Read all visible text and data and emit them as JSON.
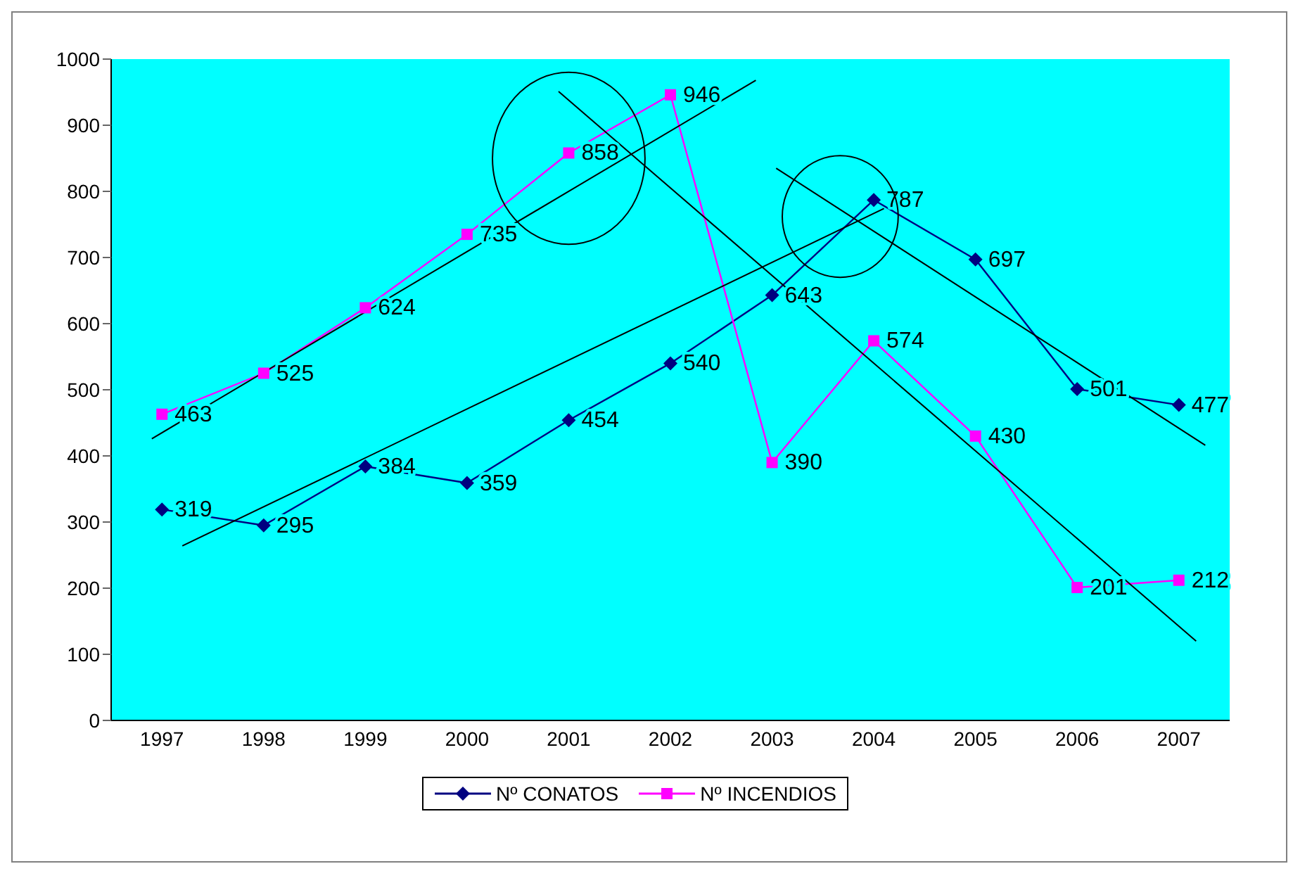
{
  "chart_data": {
    "type": "line",
    "x": [
      1997,
      1998,
      1999,
      2000,
      2001,
      2002,
      2003,
      2004,
      2005,
      2006,
      2007
    ],
    "series": [
      {
        "name": "Nº CONATOS",
        "color": "#000080",
        "marker": "diamond",
        "values": [
          319,
          295,
          384,
          359,
          454,
          540,
          643,
          787,
          697,
          501,
          477
        ],
        "value_labels": [
          "319",
          "295",
          "384",
          "359",
          "454",
          "540",
          "643",
          "787",
          "697",
          "501",
          "477"
        ]
      },
      {
        "name": "Nº INCENDIOS",
        "color": "#ff00ff",
        "marker": "square",
        "values": [
          463,
          525,
          624,
          735,
          858,
          946,
          390,
          574,
          430,
          201,
          212
        ],
        "value_labels": [
          "463",
          "525",
          "624",
          "735",
          "858",
          "946",
          "390",
          "574",
          "430",
          "201",
          "212"
        ]
      },
      {
        "type": "line",
        "color": "#000000",
        "marker": "none",
        "x": [
          1996.9,
          2002.84
        ],
        "values": [
          426,
          968
        ]
      },
      {
        "type": "line",
        "color": "#000000",
        "marker": "none",
        "x": [
          1997.2,
          2004.1
        ],
        "values": [
          264,
          774
        ]
      },
      {
        "type": "line",
        "color": "#000000",
        "marker": "none",
        "x": [
          2000.9,
          2007.17
        ],
        "values": [
          951,
          120
        ]
      },
      {
        "type": "line",
        "color": "#000000",
        "marker": "none",
        "x": [
          2003.04,
          2007.26
        ],
        "values": [
          835,
          416
        ]
      }
    ],
    "xlim": [
      1996.5,
      2007.5
    ],
    "xticks": [
      1997,
      1998,
      1999,
      2000,
      2001,
      2002,
      2003,
      2004,
      2005,
      2006,
      2007
    ],
    "ylim": [
      0,
      1000
    ],
    "yticks": [
      0,
      100,
      200,
      300,
      400,
      500,
      600,
      700,
      800,
      900,
      1000
    ],
    "grid": false,
    "legend": "bottom"
  }
}
